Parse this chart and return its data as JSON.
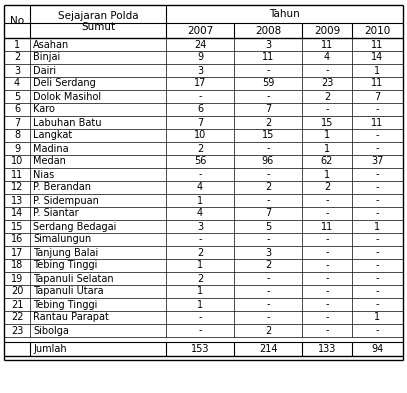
{
  "col_headers_row1": [
    "No",
    "Sejajaran Polda\nSumut",
    "Tahun"
  ],
  "col_headers_row2": [
    "2007",
    "2008",
    "2009",
    "2010"
  ],
  "rows": [
    [
      "1",
      "Asahan",
      "24",
      "3",
      "11",
      "11"
    ],
    [
      "2",
      "Binjai",
      "9",
      "11",
      "4",
      "14"
    ],
    [
      "3",
      "Dairi",
      "3",
      "-",
      "-",
      "1"
    ],
    [
      "4",
      "Deli Serdang",
      "17",
      "59",
      "23",
      "11"
    ],
    [
      "5",
      "Dolok Masihol",
      "-",
      "-",
      "2",
      "7"
    ],
    [
      "6",
      "Karo",
      "6",
      "7",
      "-",
      "-"
    ],
    [
      "7",
      "Labuhan Batu",
      "7",
      "2",
      "15",
      "11"
    ],
    [
      "8",
      "Langkat",
      "10",
      "15",
      "1",
      "-"
    ],
    [
      "9",
      "Madina",
      "2",
      "-",
      "1",
      "-"
    ],
    [
      "10",
      "Medan",
      "56",
      "96",
      "62",
      "37"
    ],
    [
      "11",
      "Nias",
      "-",
      "-",
      "1",
      "-"
    ],
    [
      "12",
      "P. Berandan",
      "4",
      "2",
      "2",
      "-"
    ],
    [
      "13",
      "P. Sidempuan",
      "1",
      "-",
      "-",
      "-"
    ],
    [
      "14",
      "P. Siantar",
      "4",
      "7",
      "-",
      "-"
    ],
    [
      "15",
      "Serdang Bedagai",
      "3",
      "5",
      "11",
      "1"
    ],
    [
      "16",
      "Simalungun",
      "-",
      "-",
      "-",
      "-"
    ],
    [
      "17",
      "Tanjung Balai",
      "2",
      "3",
      "-",
      "-"
    ],
    [
      "18",
      "Tebing Tinggi",
      "1",
      "2",
      "-",
      "-"
    ],
    [
      "19",
      "Tapanuli Selatan",
      "2",
      "-",
      "-",
      "-"
    ],
    [
      "20",
      "Tapanuli Utara",
      "1",
      "-",
      "-",
      "-"
    ],
    [
      "21",
      "Tebing Tinggi",
      "1",
      "-",
      "-",
      "-"
    ],
    [
      "22",
      "Rantau Parapat",
      "-",
      "-",
      "-",
      "1"
    ],
    [
      "23",
      "Sibolga",
      "-",
      "2",
      "-",
      "-"
    ]
  ],
  "footer": [
    "",
    "Jumlah",
    "153",
    "214",
    "133",
    "94"
  ],
  "bg_color": "#ffffff",
  "text_color": "#000000",
  "border_color": "#000000",
  "font_size": 7.0,
  "header_font_size": 7.5
}
